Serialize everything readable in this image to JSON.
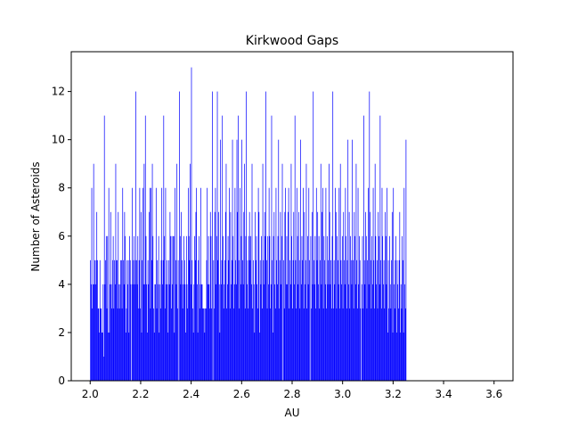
{
  "chart_data": {
    "type": "bar",
    "subtype": "histogram",
    "title": "Kirkwood Gaps",
    "xlabel": "AU",
    "ylabel": "Number of Asteroids",
    "xlim": [
      1.925,
      3.675
    ],
    "ylim": [
      0,
      13.65
    ],
    "xticks": [
      2.0,
      2.2,
      2.4,
      2.6,
      2.8,
      3.0,
      3.2,
      3.4,
      3.6
    ],
    "xtick_labels": [
      "2.0",
      "2.2",
      "2.4",
      "2.6",
      "2.8",
      "3.0",
      "3.2",
      "3.4",
      "3.6"
    ],
    "yticks": [
      0,
      2,
      4,
      6,
      8,
      10,
      12
    ],
    "ytick_labels": [
      "0",
      "2",
      "4",
      "6",
      "8",
      "10",
      "12"
    ],
    "bar_color": "#0000ff",
    "grid": false,
    "legend": "none",
    "bin_start": 2.0,
    "bin_width": 0.0025,
    "counts": [
      5,
      4,
      8,
      3,
      4,
      9,
      4,
      5,
      4,
      5,
      7,
      5,
      3,
      3,
      2,
      5,
      3,
      3,
      2,
      2,
      4,
      1,
      11,
      4,
      5,
      6,
      3,
      6,
      2,
      8,
      2,
      4,
      7,
      4,
      3,
      5,
      6,
      3,
      5,
      4,
      9,
      5,
      5,
      3,
      7,
      4,
      3,
      4,
      5,
      5,
      3,
      8,
      5,
      4,
      7,
      6,
      2,
      3,
      5,
      4,
      5,
      2,
      6,
      5,
      4,
      0,
      8,
      4,
      5,
      6,
      4,
      5,
      12,
      5,
      4,
      6,
      3,
      5,
      8,
      3,
      7,
      2,
      5,
      8,
      4,
      9,
      4,
      11,
      6,
      4,
      2,
      5,
      4,
      7,
      8,
      3,
      8,
      5,
      9,
      6,
      3,
      2,
      4,
      4,
      8,
      3,
      5,
      4,
      6,
      2,
      4,
      3,
      5,
      8,
      4,
      5,
      11,
      6,
      3,
      8,
      4,
      5,
      4,
      2,
      5,
      4,
      7,
      6,
      3,
      6,
      4,
      6,
      6,
      2,
      8,
      5,
      4,
      9,
      3,
      5,
      0,
      12,
      6,
      4,
      7,
      5,
      3,
      4,
      6,
      5,
      4,
      2,
      6,
      4,
      3,
      8,
      6,
      5,
      9,
      4,
      13,
      5,
      3,
      2,
      4,
      6,
      5,
      7,
      8,
      4,
      2,
      5,
      6,
      3,
      4,
      8,
      4,
      4,
      3,
      3,
      3,
      2,
      3,
      3,
      5,
      8,
      4,
      6,
      4,
      3,
      7,
      6,
      3,
      12,
      0,
      5,
      3,
      7,
      8,
      4,
      6,
      12,
      5,
      7,
      4,
      2,
      10,
      4,
      5,
      11,
      6,
      3,
      4,
      5,
      7,
      9,
      3,
      4,
      6,
      5,
      8,
      3,
      7,
      4,
      5,
      10,
      6,
      3,
      4,
      8,
      5,
      4,
      10,
      7,
      11,
      5,
      3,
      8,
      4,
      6,
      10,
      5,
      4,
      7,
      9,
      3,
      6,
      12,
      4,
      5,
      3,
      6,
      7,
      5,
      6,
      4,
      9,
      3,
      5,
      4,
      2,
      7,
      5,
      6,
      4,
      3,
      8,
      7,
      2,
      5,
      4,
      6,
      3,
      9,
      5,
      4,
      7,
      6,
      12,
      5,
      3,
      6,
      4,
      8,
      6,
      3,
      4,
      11,
      5,
      2,
      6,
      7,
      4,
      3,
      8,
      5,
      4,
      6,
      10,
      3,
      5,
      7,
      4,
      6,
      9,
      0,
      5,
      3,
      7,
      8,
      4,
      6,
      4,
      7,
      8,
      3,
      5,
      4,
      9,
      6,
      3,
      5,
      7,
      4,
      11,
      5,
      3,
      8,
      6,
      4,
      7,
      5,
      3,
      10,
      4,
      6,
      5,
      8,
      3,
      7,
      4,
      5,
      9,
      3,
      6,
      4,
      8,
      5,
      0,
      6,
      3,
      7,
      4,
      12,
      5,
      4,
      6,
      3,
      8,
      5,
      7,
      4,
      6,
      3,
      5,
      9,
      4,
      7,
      8,
      3,
      6,
      5,
      4,
      8,
      3,
      6,
      4,
      5,
      9,
      7,
      4,
      5,
      3,
      6,
      12,
      3,
      5,
      4,
      8,
      7,
      3,
      6,
      5,
      4,
      8,
      3,
      9,
      5,
      4,
      6,
      3,
      7,
      5,
      4,
      8,
      6,
      3,
      5,
      10,
      4,
      7,
      3,
      6,
      5,
      4,
      10,
      5,
      3,
      7,
      6,
      4,
      9,
      5,
      3,
      8,
      4,
      6,
      5,
      3,
      0,
      4,
      6,
      3,
      11,
      5,
      4,
      7,
      6,
      3,
      5,
      8,
      4,
      12,
      7,
      5,
      3,
      6,
      4,
      8,
      5,
      3,
      9,
      6,
      4,
      5,
      3,
      7,
      6,
      4,
      11,
      5,
      3,
      8,
      6,
      4,
      5,
      3,
      7,
      6,
      4,
      8,
      2,
      5,
      3,
      6,
      4,
      3,
      5,
      7,
      2,
      8,
      4,
      3,
      5,
      6,
      2,
      5,
      4,
      3,
      5,
      7,
      2,
      4,
      3,
      6,
      5,
      2,
      8,
      4,
      3,
      10
    ]
  }
}
